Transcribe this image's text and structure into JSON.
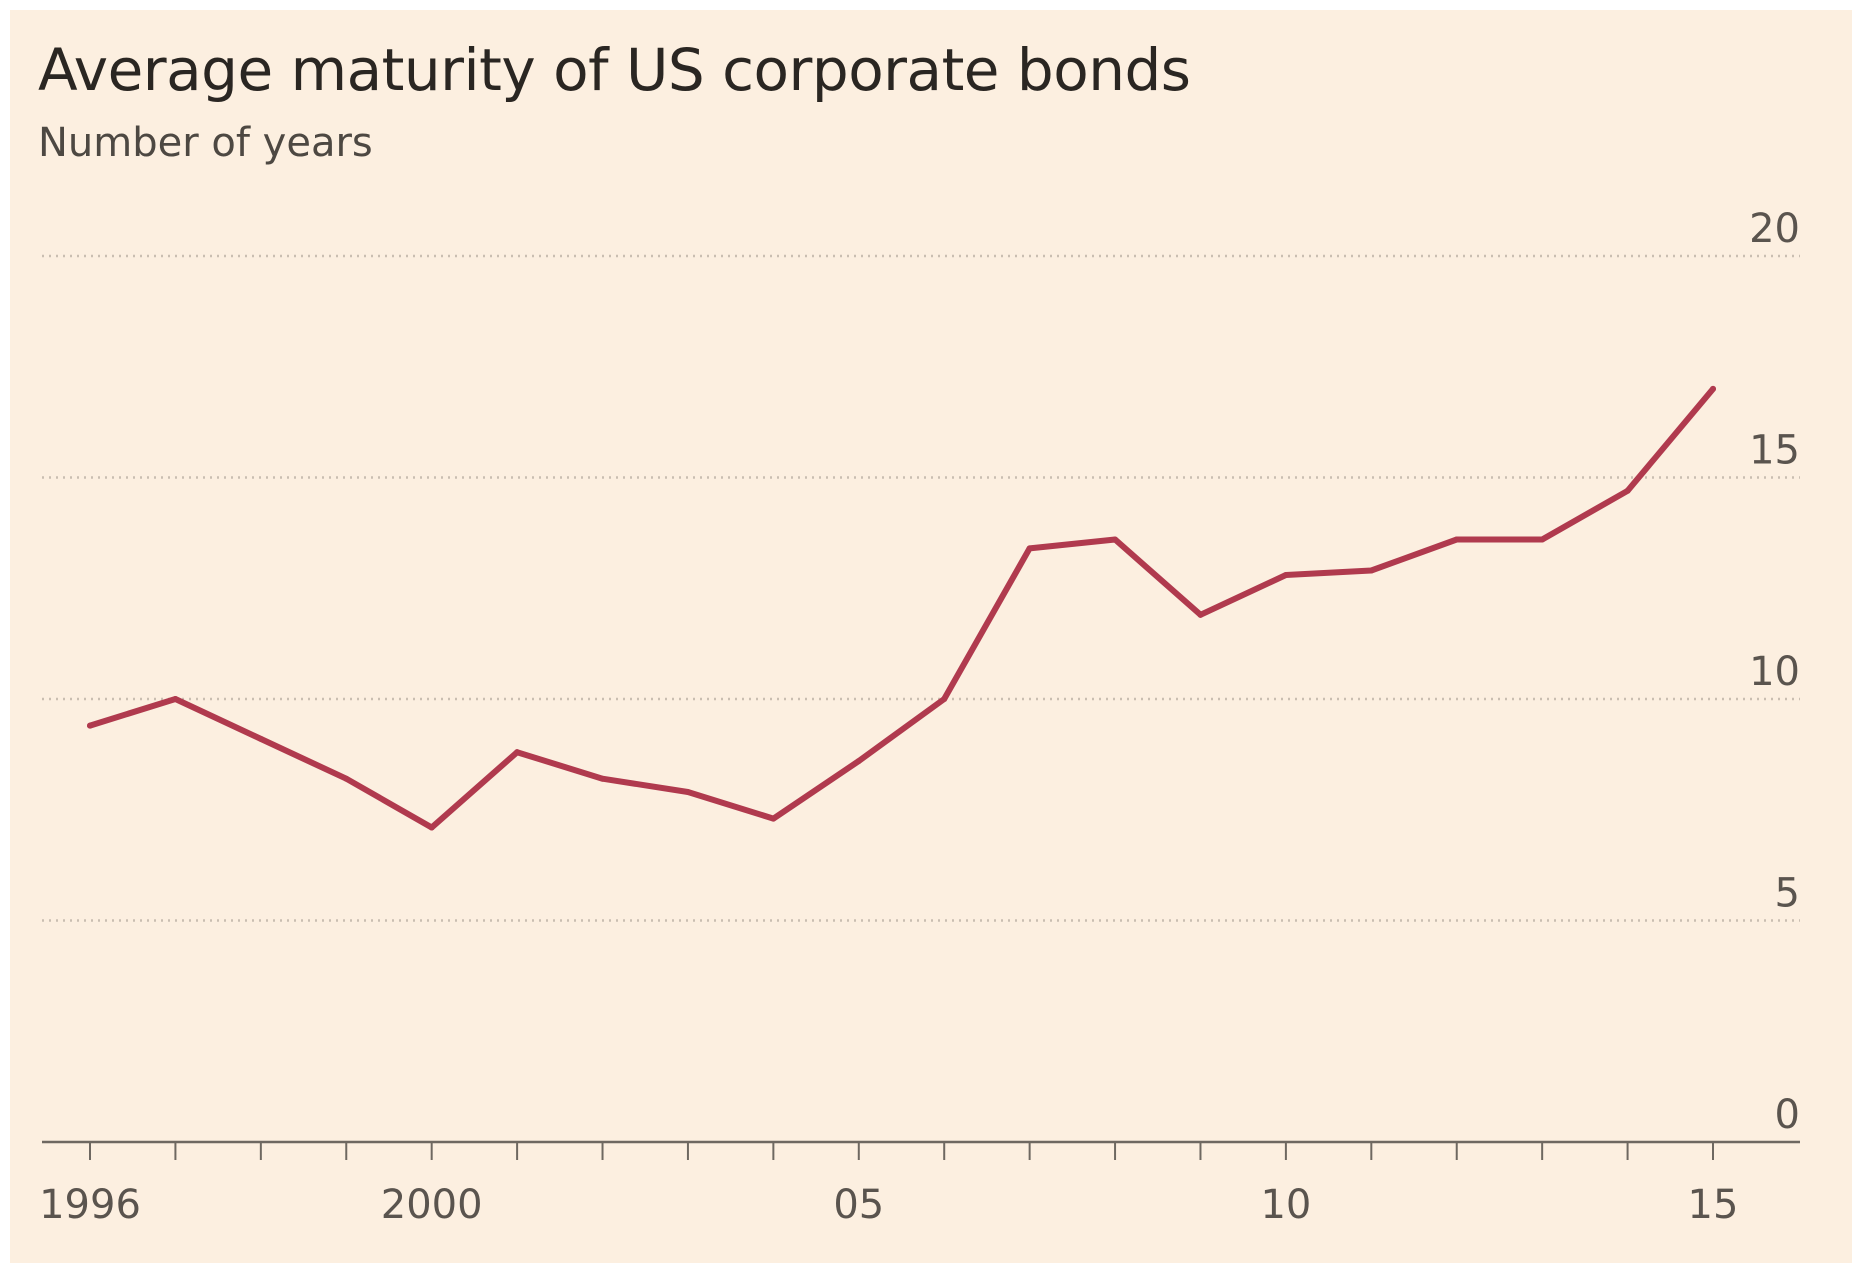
{
  "colors": {
    "background": "#fcefe0",
    "series": "#b03a4e",
    "grid": "#c9beb1",
    "axis": "#6e6861"
  },
  "chart_data": {
    "type": "line",
    "title": "Average maturity of US corporate bonds",
    "subtitle": "Number of years",
    "xlabel": "",
    "ylabel": "Number of years",
    "x": [
      1996,
      1997,
      1998,
      1999,
      2000,
      2001,
      2002,
      2003,
      2004,
      2005,
      2006,
      2007,
      2008,
      2009,
      2010,
      2011,
      2012,
      2013,
      2014,
      2015
    ],
    "series": [
      {
        "name": "Average maturity",
        "values": [
          9.4,
          10.0,
          9.1,
          8.2,
          7.1,
          8.8,
          8.2,
          7.9,
          7.3,
          8.6,
          10.0,
          13.4,
          13.6,
          11.9,
          12.8,
          12.9,
          13.6,
          13.6,
          14.7,
          17.0
        ]
      }
    ],
    "xlim": [
      1996,
      2015
    ],
    "ylim": [
      0,
      20
    ],
    "yticks": [
      0,
      5,
      10,
      15,
      20
    ],
    "ytick_labels": [
      "0",
      "5",
      "10",
      "15",
      "20"
    ],
    "xtick_labels": [
      {
        "value": 1996,
        "label": "1996"
      },
      {
        "value": 2000,
        "label": "2000"
      },
      {
        "value": 2005,
        "label": "05"
      },
      {
        "value": 2010,
        "label": "10"
      },
      {
        "value": 2015,
        "label": "15"
      }
    ],
    "grid": "horizontal dotted",
    "legend": "none"
  }
}
